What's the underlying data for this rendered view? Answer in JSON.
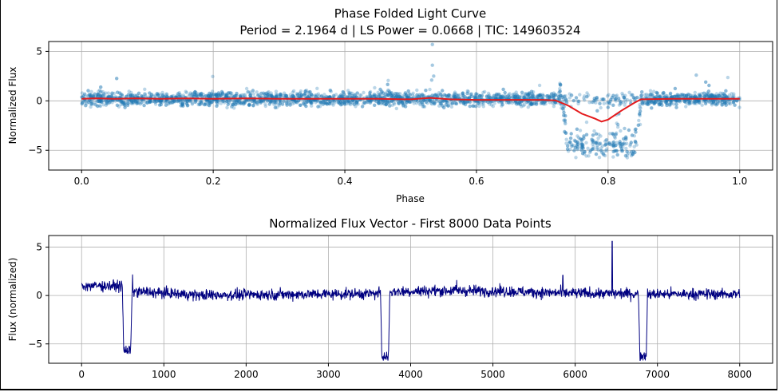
{
  "chart_data": [
    {
      "type": "scatter",
      "title_line1": "Phase Folded Light Curve",
      "title_line2": "Period = 2.1964 d | LS Power = 0.0668 | TIC: 149603524",
      "xlabel": "Phase",
      "ylabel": "Normalized Flux",
      "xlim": [
        -0.05,
        1.05
      ],
      "ylim": [
        -7.0,
        6.0
      ],
      "xticks": [
        "0.0",
        "0.2",
        "0.4",
        "0.6",
        "0.8",
        "1.0"
      ],
      "xtick_values": [
        0.0,
        0.2,
        0.4,
        0.6,
        0.8,
        1.0
      ],
      "yticks": [
        "5",
        "0",
        "−5"
      ],
      "ytick_values": [
        5,
        0,
        -5
      ],
      "grid": true,
      "scatter_color": "#1f77b4",
      "trend_color": "#e41a1c",
      "transit": {
        "phase_start": 0.725,
        "phase_center": 0.79,
        "phase_end": 0.85,
        "depth": -5.3
      },
      "trend": {
        "phase": [
          0.0,
          0.02,
          0.05,
          0.08,
          0.12,
          0.16,
          0.2,
          0.25,
          0.3,
          0.35,
          0.4,
          0.45,
          0.5,
          0.53,
          0.56,
          0.6,
          0.65,
          0.7,
          0.72,
          0.74,
          0.76,
          0.78,
          0.79,
          0.8,
          0.82,
          0.84,
          0.85,
          0.9,
          0.95,
          1.0
        ],
        "flux": [
          0.2,
          0.25,
          0.2,
          0.25,
          0.2,
          0.25,
          0.2,
          0.25,
          0.2,
          0.2,
          0.2,
          0.2,
          0.15,
          0.3,
          0.15,
          0.1,
          0.1,
          0.1,
          0.05,
          -0.5,
          -1.3,
          -1.8,
          -2.1,
          -1.9,
          -1.0,
          -0.2,
          0.15,
          0.2,
          0.2,
          0.2
        ]
      }
    },
    {
      "type": "line",
      "title": "Normalized Flux Vector - First 8000 Data Points",
      "xlabel": "",
      "ylabel": "Flux (normalized)",
      "xlim": [
        -400,
        8400
      ],
      "ylim": [
        -7.0,
        6.2
      ],
      "xticks": [
        "0",
        "1000",
        "2000",
        "3000",
        "4000",
        "5000",
        "6000",
        "7000",
        "8000"
      ],
      "xtick_values": [
        0,
        1000,
        2000,
        3000,
        4000,
        5000,
        6000,
        7000,
        8000
      ],
      "yticks": [
        "5",
        "0",
        "−5"
      ],
      "ytick_values": [
        5,
        0,
        -5
      ],
      "grid": true,
      "line_color": "#000080",
      "transits": [
        {
          "start": 500,
          "center": 555,
          "end": 620,
          "depth": -5.7
        },
        {
          "start": 3635,
          "center": 3690,
          "end": 3750,
          "depth": -6.3
        },
        {
          "start": 6770,
          "center": 6825,
          "end": 6880,
          "depth": -6.2
        }
      ],
      "spike": {
        "x": 6450,
        "y": 5.6
      }
    }
  ]
}
